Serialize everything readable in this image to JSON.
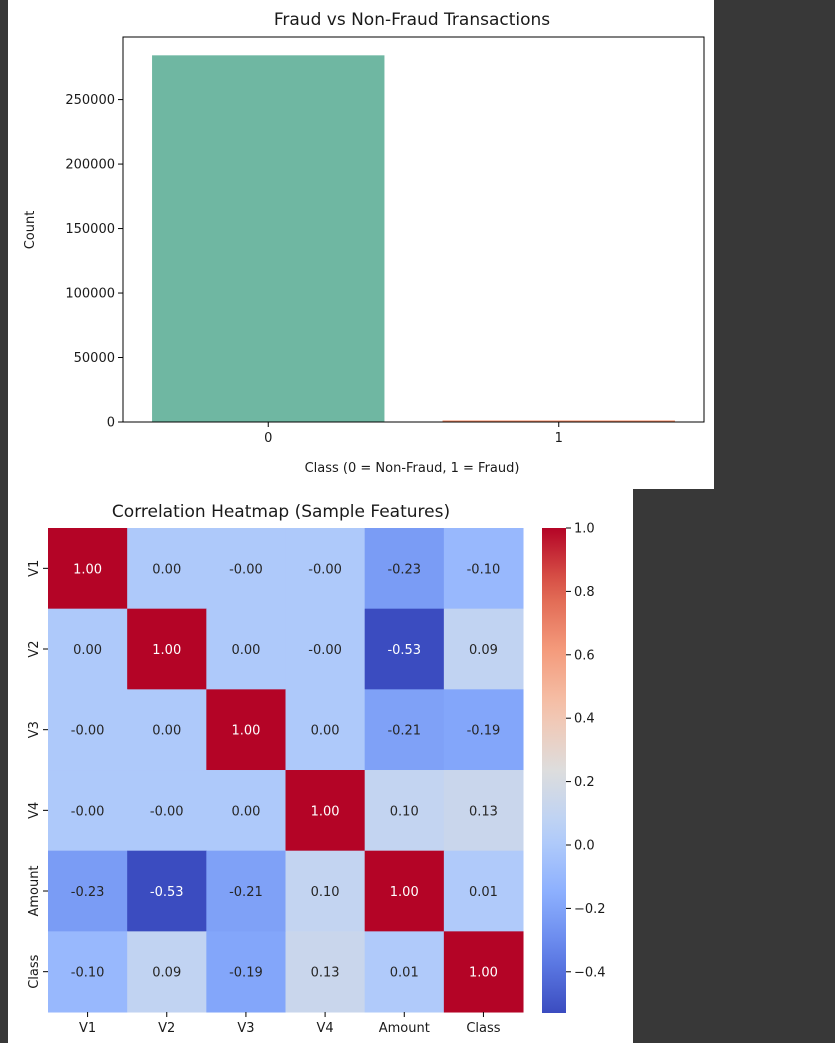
{
  "bar_title": "Fraud vs Non-Fraud Transactions",
  "heatmap_title": "Correlation Heatmap (Sample Features)",
  "colors": {
    "bar0": "#6fb7a2",
    "bar1": "#f4875f",
    "background": "#383838"
  },
  "chart_data": [
    {
      "type": "bar",
      "title": "Fraud vs Non-Fraud Transactions",
      "categories": [
        "0",
        "1"
      ],
      "values": [
        284315,
        492
      ],
      "xlabel": "Class (0 = Non-Fraud, 1 = Fraud)",
      "ylabel": "Count",
      "ylim": [
        0,
        298530
      ],
      "yticks": [
        0,
        50000,
        100000,
        150000,
        200000,
        250000
      ],
      "ytick_labels": [
        "0",
        "50000",
        "100000",
        "150000",
        "200000",
        "250000"
      ],
      "grid": false,
      "legend": "none"
    },
    {
      "type": "heatmap",
      "title": "Correlation Heatmap (Sample Features)",
      "rows": [
        "V1",
        "V2",
        "V3",
        "V4",
        "Amount",
        "Class"
      ],
      "cols": [
        "V1",
        "V2",
        "V3",
        "V4",
        "Amount",
        "Class"
      ],
      "values": [
        [
          1.0,
          0.0,
          -0.0,
          -0.0,
          -0.23,
          -0.1
        ],
        [
          0.0,
          1.0,
          0.0,
          -0.0,
          -0.53,
          0.09
        ],
        [
          -0.0,
          0.0,
          1.0,
          0.0,
          -0.21,
          -0.19
        ],
        [
          -0.0,
          -0.0,
          0.0,
          1.0,
          0.1,
          0.13
        ],
        [
          -0.23,
          -0.53,
          -0.21,
          0.1,
          1.0,
          0.01
        ],
        [
          -0.1,
          0.09,
          -0.19,
          0.13,
          0.01,
          1.0
        ]
      ],
      "labels": [
        [
          "1.00",
          "0.00",
          "-0.00",
          "-0.00",
          "-0.23",
          "-0.10"
        ],
        [
          "0.00",
          "1.00",
          "0.00",
          "-0.00",
          "-0.53",
          "0.09"
        ],
        [
          "-0.00",
          "0.00",
          "1.00",
          "0.00",
          "-0.21",
          "-0.19"
        ],
        [
          "-0.00",
          "-0.00",
          "0.00",
          "1.00",
          "0.10",
          "0.13"
        ],
        [
          "-0.23",
          "-0.53",
          "-0.21",
          "0.10",
          "1.00",
          "0.01"
        ],
        [
          "-0.10",
          "0.09",
          "-0.19",
          "0.13",
          "0.01",
          "1.00"
        ]
      ],
      "colormap": "coolwarm",
      "vmin": -0.53,
      "vmax": 1.0,
      "colorbar_ticks": [
        1.0,
        0.8,
        0.6,
        0.4,
        0.2,
        0.0,
        -0.2,
        -0.4
      ],
      "colorbar_tick_labels": [
        "1.0",
        "0.8",
        "0.6",
        "0.4",
        "0.2",
        "0.0",
        "−0.2",
        "−0.4"
      ],
      "legend": "colorbar-right"
    }
  ]
}
